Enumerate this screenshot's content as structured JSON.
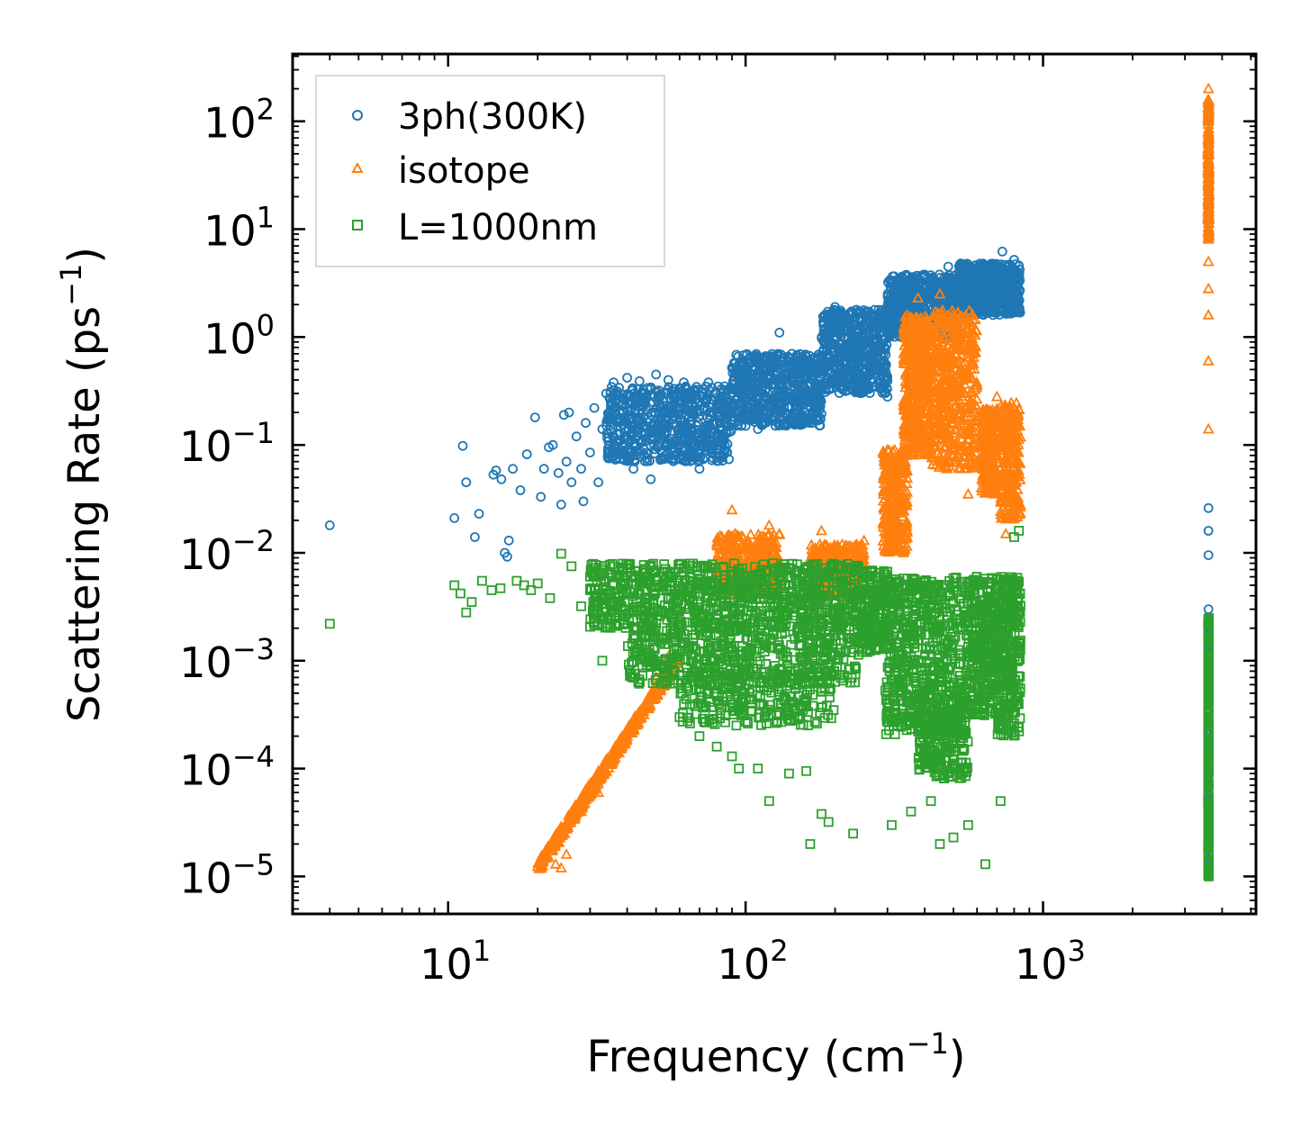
{
  "chart_data": {
    "type": "scatter",
    "title": "",
    "xlabel": "Frequency (cm",
    "xlabel_sup": "−1",
    "xlabel_end": ")",
    "ylabel": "Scattering Rate (ps",
    "ylabel_sup": "−1",
    "ylabel_end": ")",
    "xscale": "log",
    "yscale": "log",
    "xlim": [
      3,
      5200
    ],
    "ylim": [
      4.5e-06,
      420
    ],
    "grid": false,
    "legend_position": "top-left",
    "x_ticks": [
      {
        "value": 10,
        "base": "10",
        "exp": "1"
      },
      {
        "value": 100,
        "base": "10",
        "exp": "2"
      },
      {
        "value": 1000,
        "base": "10",
        "exp": "3"
      }
    ],
    "y_ticks": [
      {
        "value": 1e-05,
        "base": "10",
        "exp": "−5"
      },
      {
        "value": 0.0001,
        "base": "10",
        "exp": "−4"
      },
      {
        "value": 0.001,
        "base": "10",
        "exp": "−3"
      },
      {
        "value": 0.01,
        "base": "10",
        "exp": "−2"
      },
      {
        "value": 0.1,
        "base": "10",
        "exp": "−1"
      },
      {
        "value": 1,
        "base": "10",
        "exp": "0"
      },
      {
        "value": 10,
        "base": "10",
        "exp": "1"
      },
      {
        "value": 100,
        "base": "10",
        "exp": "2"
      }
    ],
    "series": [
      {
        "name": "3ph(300K)",
        "marker": "circle",
        "color": "#1f77b4",
        "points": [
          [
            4.0,
            0.018
          ],
          [
            10.5,
            0.021
          ],
          [
            11.2,
            0.098
          ],
          [
            11.5,
            0.045
          ],
          [
            12.3,
            0.014
          ],
          [
            12.7,
            0.023
          ],
          [
            14.2,
            0.053
          ],
          [
            14.5,
            0.058
          ],
          [
            15.1,
            0.048
          ],
          [
            15.5,
            0.01
          ],
          [
            15.8,
            0.0092
          ],
          [
            16.0,
            0.013
          ],
          [
            16.5,
            0.06
          ],
          [
            17.5,
            0.038
          ],
          [
            18.4,
            0.082
          ],
          [
            19.6,
            0.18
          ],
          [
            20.5,
            0.033
          ],
          [
            21.0,
            0.06
          ],
          [
            21.8,
            0.095
          ],
          [
            22.5,
            0.1
          ],
          [
            23.5,
            0.055
          ],
          [
            24.0,
            0.028
          ],
          [
            24.5,
            0.19
          ],
          [
            25.0,
            0.07
          ],
          [
            25.5,
            0.2
          ],
          [
            26.0,
            0.045
          ],
          [
            27.0,
            0.12
          ],
          [
            28.0,
            0.06
          ],
          [
            28.5,
            0.03
          ],
          [
            29.0,
            0.16
          ],
          [
            30.0,
            0.085
          ],
          [
            31.0,
            0.22
          ],
          [
            32.0,
            0.045
          ],
          [
            33.0,
            0.14
          ],
          [
            34.0,
            0.3
          ],
          [
            35.0,
            0.075
          ],
          [
            36.0,
            0.38
          ],
          [
            38.0,
            0.11
          ],
          [
            40.0,
            0.42
          ],
          [
            42.0,
            0.06
          ],
          [
            44.0,
            0.39
          ],
          [
            46.0,
            0.15
          ],
          [
            48.0,
            0.048
          ],
          [
            50.0,
            0.45
          ],
          [
            52.0,
            0.18
          ],
          [
            55.0,
            0.4
          ],
          [
            58.0,
            0.11
          ],
          [
            62.0,
            0.38
          ],
          [
            66.0,
            0.3
          ],
          [
            70.0,
            0.06
          ],
          [
            75.0,
            0.38
          ],
          [
            80.0,
            0.09
          ],
          [
            85.0,
            0.35
          ],
          [
            90.0,
            0.52
          ],
          [
            100.0,
            0.15
          ],
          [
            110.0,
            0.14
          ],
          [
            130.0,
            1.1
          ],
          [
            150.0,
            0.4
          ],
          [
            180.0,
            0.35
          ],
          [
            200.0,
            1.9
          ],
          [
            220.0,
            0.5
          ],
          [
            260.0,
            0.9
          ],
          [
            300.0,
            0.28
          ],
          [
            330.0,
            2.5
          ],
          [
            360.0,
            1.2
          ],
          [
            400.0,
            3.8
          ],
          [
            440.0,
            1.3
          ],
          [
            480.0,
            4.5
          ],
          [
            520.0,
            1.8
          ],
          [
            580.0,
            2.5
          ],
          [
            620.0,
            4.0
          ],
          [
            680.0,
            1.6
          ],
          [
            730.0,
            6.2
          ],
          [
            760.0,
            2.2
          ],
          [
            800.0,
            5.2
          ],
          [
            830.0,
            4.6
          ],
          [
            3600.0,
            0.026
          ],
          [
            3600.0,
            0.016
          ],
          [
            3600.0,
            0.0095
          ],
          [
            3600.0,
            0.003
          ],
          [
            3600.0,
            0.0025
          ]
        ],
        "bands": [
          {
            "x": [
              34,
              90
            ],
            "y": [
              0.07,
              0.35
            ],
            "n": 650
          },
          {
            "x": [
              90,
              180
            ],
            "y": [
              0.15,
              0.7
            ],
            "n": 600
          },
          {
            "x": [
              180,
              300
            ],
            "y": [
              0.3,
              1.8
            ],
            "n": 550
          },
          {
            "x": [
              300,
              520
            ],
            "y": [
              1.0,
              3.8
            ],
            "n": 550
          },
          {
            "x": [
              520,
              840
            ],
            "y": [
              1.6,
              4.8
            ],
            "n": 550
          },
          {
            "x": [
              3590,
              3610
            ],
            "y": [
              1e-05,
              0.0025
            ],
            "n": 160
          }
        ]
      },
      {
        "name": "isotope",
        "marker": "triangle",
        "color": "#ff7f0e",
        "points": [
          [
            20.5,
            1.2e-05
          ],
          [
            21.5,
            1.5e-05
          ],
          [
            23.0,
            1.3e-05
          ],
          [
            24.0,
            1.2e-05
          ],
          [
            25.0,
            1.6e-05
          ],
          [
            28.0,
            4e-05
          ],
          [
            32.0,
            6e-05
          ],
          [
            36.0,
            0.00012
          ],
          [
            40.0,
            0.0002
          ],
          [
            45.0,
            0.00035
          ],
          [
            50.0,
            0.0007
          ],
          [
            55.0,
            0.0011
          ],
          [
            60.0,
            0.0022
          ],
          [
            90.0,
            0.025
          ],
          [
            120.0,
            0.018
          ],
          [
            130.0,
            0.015
          ],
          [
            180.0,
            0.016
          ],
          [
            250.0,
            0.013
          ],
          [
            300.0,
            0.09
          ],
          [
            350.0,
            1.6
          ],
          [
            380.0,
            2.3
          ],
          [
            420.0,
            0.09
          ],
          [
            450.0,
            2.5
          ],
          [
            500.0,
            0.08
          ],
          [
            560.0,
            0.035
          ],
          [
            600.0,
            0.0015
          ],
          [
            650.0,
            0.2
          ],
          [
            700.0,
            0.28
          ],
          [
            750.0,
            0.015
          ],
          [
            810.0,
            0.09
          ],
          [
            3600.0,
            200
          ],
          [
            3600.0,
            1.6
          ],
          [
            3600.0,
            0.6
          ],
          [
            3600.0,
            0.14
          ],
          [
            3600.0,
            2.8
          ],
          [
            3600.0,
            5.0
          ]
        ],
        "bands": [
          {
            "x": [
              20,
              60
            ],
            "y": [
              1.2e-05,
              0.0011
            ],
            "n": 420,
            "type": "line"
          },
          {
            "x": [
              80,
              130
            ],
            "y": [
              0.004,
              0.015
            ],
            "n": 350
          },
          {
            "x": [
              165,
              250
            ],
            "y": [
              0.004,
              0.012
            ],
            "n": 300
          },
          {
            "x": [
              290,
              350
            ],
            "y": [
              0.01,
              0.09
            ],
            "n": 300
          },
          {
            "x": [
              340,
              420
            ],
            "y": [
              0.08,
              1.6
            ],
            "n": 450
          },
          {
            "x": [
              420,
              600
            ],
            "y": [
              0.06,
              1.8
            ],
            "n": 500
          },
          {
            "x": [
              620,
              700
            ],
            "y": [
              0.035,
              0.22
            ],
            "n": 250
          },
          {
            "x": [
              720,
              840
            ],
            "y": [
              0.02,
              0.25
            ],
            "n": 250
          },
          {
            "x": [
              3590,
              3610
            ],
            "y": [
              8,
              160
            ],
            "n": 160
          }
        ]
      },
      {
        "name": "L=1000nm",
        "marker": "square",
        "color": "#2ca02c",
        "points": [
          [
            4.0,
            0.0022
          ],
          [
            10.5,
            0.005
          ],
          [
            11.0,
            0.0042
          ],
          [
            11.5,
            0.0028
          ],
          [
            12.0,
            0.0035
          ],
          [
            13.0,
            0.0055
          ],
          [
            14.0,
            0.0045
          ],
          [
            15.0,
            0.0047
          ],
          [
            17.0,
            0.0055
          ],
          [
            18.0,
            0.005
          ],
          [
            19.0,
            0.0045
          ],
          [
            20.0,
            0.0052
          ],
          [
            22.0,
            0.0038
          ],
          [
            24.0,
            0.0098
          ],
          [
            26.0,
            0.0075
          ],
          [
            28.0,
            0.0032
          ],
          [
            30.0,
            0.0045
          ],
          [
            33.0,
            0.001
          ],
          [
            35.0,
            0.0065
          ],
          [
            45.0,
            0.0009
          ],
          [
            60.0,
            0.0003
          ],
          [
            70.0,
            0.0002
          ],
          [
            80.0,
            0.00016
          ],
          [
            90.0,
            0.00013
          ],
          [
            95.0,
            0.0001
          ],
          [
            110.0,
            0.0001
          ],
          [
            120.0,
            5e-05
          ],
          [
            140.0,
            9e-05
          ],
          [
            160.0,
            9.5e-05
          ],
          [
            165.0,
            2e-05
          ],
          [
            180.0,
            3.8e-05
          ],
          [
            190.0,
            3.2e-05
          ],
          [
            230.0,
            2.5e-05
          ],
          [
            310.0,
            3e-05
          ],
          [
            360.0,
            4e-05
          ],
          [
            420.0,
            5e-05
          ],
          [
            450.0,
            2e-05
          ],
          [
            500.0,
            2.3e-05
          ],
          [
            560.0,
            3e-05
          ],
          [
            640.0,
            1.3e-05
          ],
          [
            720.0,
            5e-05
          ],
          [
            800.0,
            0.014
          ],
          [
            830.0,
            0.016
          ]
        ],
        "bands": [
          {
            "x": [
              30,
              240
            ],
            "y": [
              0.002,
              0.008
            ],
            "n": 900
          },
          {
            "x": [
              40,
              240
            ],
            "y": [
              0.0006,
              0.002
            ],
            "n": 500
          },
          {
            "x": [
              60,
              200
            ],
            "y": [
              0.00025,
              0.0008
            ],
            "n": 250
          },
          {
            "x": [
              240,
              300
            ],
            "y": [
              0.0012,
              0.007
            ],
            "n": 200
          },
          {
            "x": [
              295,
              560
            ],
            "y": [
              0.0002,
              0.006
            ],
            "n": 650
          },
          {
            "x": [
              380,
              560
            ],
            "y": [
              8e-05,
              0.0004
            ],
            "n": 200
          },
          {
            "x": [
              560,
              700
            ],
            "y": [
              0.0003,
              0.006
            ],
            "n": 300
          },
          {
            "x": [
              700,
              840
            ],
            "y": [
              0.0002,
              0.006
            ],
            "n": 300
          },
          {
            "x": [
              3590,
              3610
            ],
            "y": [
              1e-05,
              0.0025
            ],
            "n": 260
          }
        ]
      }
    ]
  }
}
